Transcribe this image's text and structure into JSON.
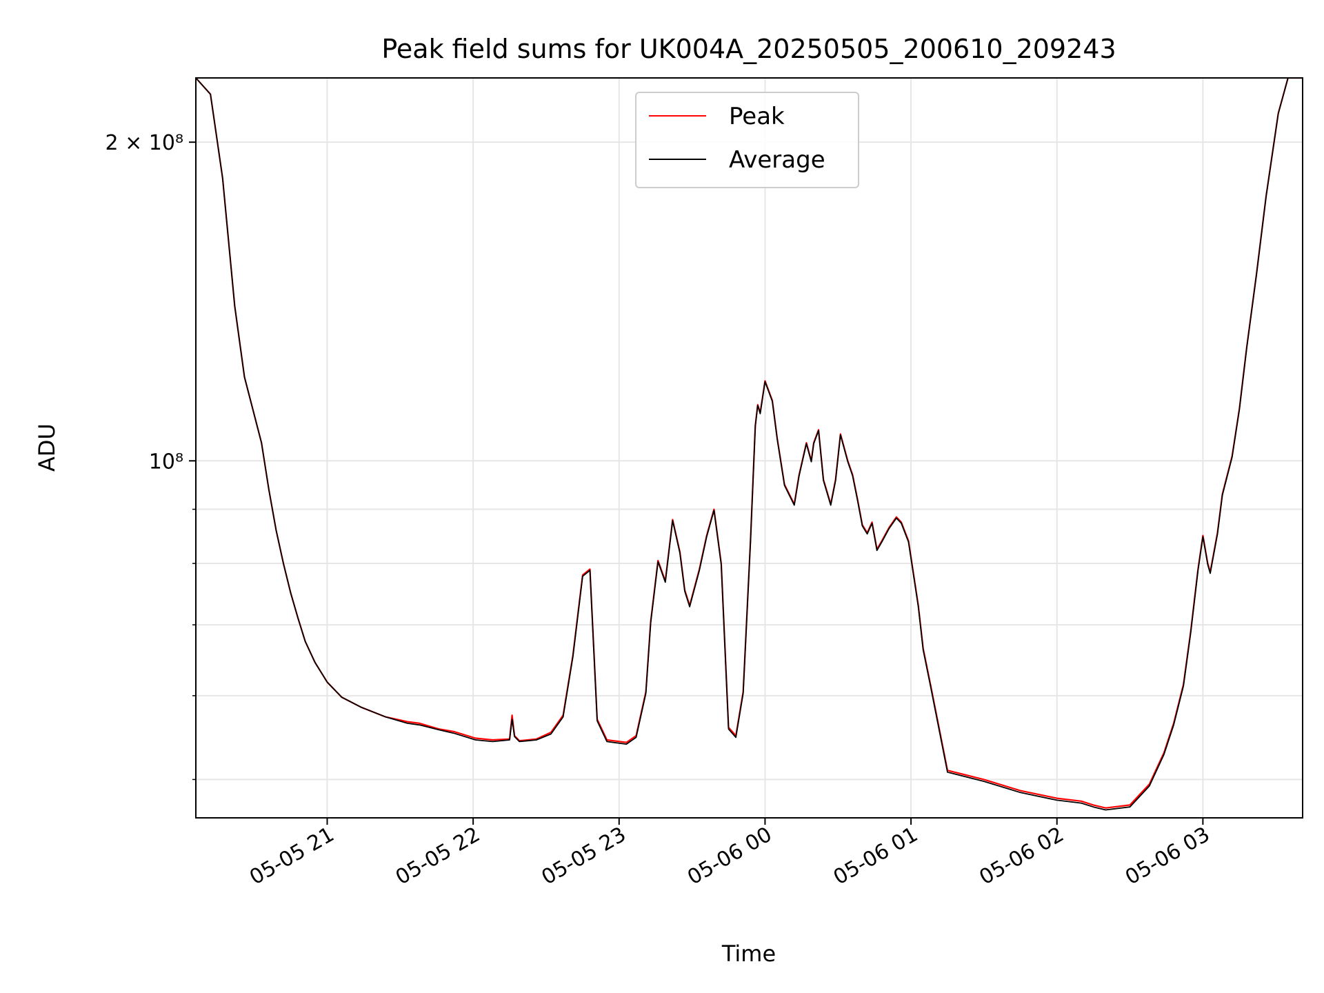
{
  "chart_data": {
    "type": "line",
    "title": "Peak field sums for UK004A_20250505_200610_209243",
    "xlabel": "Time",
    "ylabel": "ADU",
    "yscale": "log",
    "xlim": [
      "05-05 20:06",
      "05-06 03:41"
    ],
    "ylim": [
      46000000,
      230000000
    ],
    "grid": true,
    "legend_position": "top-center",
    "x_ticks": [
      {
        "time": "05-05 21:00",
        "label": "05-05 21"
      },
      {
        "time": "05-05 22:00",
        "label": "05-05 22"
      },
      {
        "time": "05-05 23:00",
        "label": "05-05 23"
      },
      {
        "time": "05-06 00:00",
        "label": "05-06 00"
      },
      {
        "time": "05-06 01:00",
        "label": "05-06 01"
      },
      {
        "time": "05-06 02:00",
        "label": "05-06 02"
      },
      {
        "time": "05-06 03:00",
        "label": "05-06 03"
      }
    ],
    "y_ticks": [
      {
        "value": 200000000,
        "label": "2 × 10⁸"
      },
      {
        "value": 100000000,
        "label": "10⁸"
      }
    ],
    "series": [
      {
        "name": "Peak",
        "color": "#ff0000",
        "x": [
          "05-05 20:06",
          "05-05 20:12",
          "05-05 20:17",
          "05-05 20:22",
          "05-05 20:26",
          "05-05 20:33",
          "05-05 20:36",
          "05-05 20:39",
          "05-05 20:42",
          "05-05 20:45",
          "05-05 20:48",
          "05-05 20:51",
          "05-05 20:55",
          "05-05 21:00",
          "05-05 21:06",
          "05-05 21:14",
          "05-05 21:24",
          "05-05 21:33",
          "05-05 21:38",
          "05-05 21:46",
          "05-05 21:52",
          "05-05 22:01",
          "05-05 22:08",
          "05-05 22:15",
          "05-05 22:16",
          "05-05 22:17",
          "05-05 22:19",
          "05-05 22:26",
          "05-05 22:32",
          "05-05 22:37",
          "05-05 22:41",
          "05-05 22:45",
          "05-05 22:48",
          "05-05 22:51",
          "05-05 22:55",
          "05-05 23:03",
          "05-05 23:07",
          "05-05 23:11",
          "05-05 23:13",
          "05-05 23:16",
          "05-05 23:19",
          "05-05 23:22",
          "05-05 23:25",
          "05-05 23:27",
          "05-05 23:29",
          "05-05 23:33",
          "05-05 23:36",
          "05-05 23:39",
          "05-05 23:42",
          "05-05 23:45",
          "05-05 23:48",
          "05-05 23:51",
          "05-05 23:54",
          "05-05 23:56",
          "05-05 23:57",
          "05-05 23:58",
          "05-06 00:00",
          "05-06 00:03",
          "05-06 00:05",
          "05-06 00:08",
          "05-06 00:12",
          "05-06 00:14",
          "05-06 00:17",
          "05-06 00:19",
          "05-06 00:20",
          "05-06 00:22",
          "05-06 00:24",
          "05-06 00:27",
          "05-06 00:29",
          "05-06 00:31",
          "05-06 00:34",
          "05-06 00:36",
          "05-06 00:38",
          "05-06 00:40",
          "05-06 00:42",
          "05-06 00:44",
          "05-06 00:46",
          "05-06 00:48",
          "05-06 00:51",
          "05-06 00:54",
          "05-06 00:56",
          "05-06 00:59",
          "05-06 01:03",
          "05-06 01:05",
          "05-06 01:08",
          "05-06 01:15",
          "05-06 01:30",
          "05-06 01:45",
          "05-06 02:00",
          "05-06 02:10",
          "05-06 02:15",
          "05-06 02:20",
          "05-06 02:30",
          "05-06 02:38",
          "05-06 02:44",
          "05-06 02:48",
          "05-06 02:52",
          "05-06 02:55",
          "05-06 02:58",
          "05-06 03:00",
          "05-06 03:02",
          "05-06 03:03",
          "05-06 03:06",
          "05-06 03:08",
          "05-06 03:12",
          "05-06 03:15",
          "05-06 03:18",
          "05-06 03:22",
          "05-06 03:26",
          "05-06 03:31",
          "05-06 03:35",
          "05-06 03:41"
        ],
        "y": [
          230000000,
          222000000,
          185000000,
          140000000,
          120000000,
          104000000,
          94000000,
          86000000,
          80000000,
          75000000,
          71000000,
          67500000,
          64500000,
          61800000,
          59800000,
          58500000,
          57300000,
          56700000,
          56500000,
          55800000,
          55500000,
          54700000,
          54500000,
          54600000,
          57500000,
          55000000,
          54400000,
          54600000,
          55400000,
          57500000,
          65500000,
          78000000,
          79000000,
          57000000,
          54500000,
          54200000,
          55000000,
          60500000,
          70500000,
          80500000,
          77000000,
          88000000,
          82000000,
          75500000,
          73000000,
          79000000,
          85000000,
          90000000,
          80000000,
          56000000,
          55000000,
          60500000,
          84000000,
          108000000,
          113000000,
          111000000,
          119000000,
          114000000,
          105000000,
          95000000,
          91000000,
          97000000,
          104000000,
          100000000,
          104000000,
          107000000,
          96000000,
          91000000,
          96000000,
          106000000,
          100000000,
          97000000,
          92000000,
          87000000,
          85500000,
          87500000,
          82500000,
          84000000,
          86500000,
          88500000,
          87500000,
          84000000,
          73000000,
          66500000,
          61500000,
          51000000,
          50000000,
          48800000,
          48000000,
          47700000,
          47300000,
          47000000,
          47300000,
          49500000,
          53000000,
          56500000,
          61500000,
          69000000,
          79000000,
          85000000,
          80000000,
          78500000,
          85500000,
          93000000,
          101000000,
          112000000,
          128000000,
          150000000,
          178000000,
          213000000,
          230000000,
          230000000
        ]
      },
      {
        "name": "Average",
        "color": "#000000",
        "x": [
          "05-05 20:06",
          "05-05 20:12",
          "05-05 20:17",
          "05-05 20:22",
          "05-05 20:26",
          "05-05 20:33",
          "05-05 20:36",
          "05-05 20:39",
          "05-05 20:42",
          "05-05 20:45",
          "05-05 20:48",
          "05-05 20:51",
          "05-05 20:55",
          "05-05 21:00",
          "05-05 21:06",
          "05-05 21:14",
          "05-05 21:24",
          "05-05 21:33",
          "05-05 21:38",
          "05-05 21:46",
          "05-05 21:52",
          "05-05 22:01",
          "05-05 22:08",
          "05-05 22:15",
          "05-05 22:16",
          "05-05 22:17",
          "05-05 22:19",
          "05-05 22:26",
          "05-05 22:32",
          "05-05 22:37",
          "05-05 22:41",
          "05-05 22:45",
          "05-05 22:48",
          "05-05 22:51",
          "05-05 22:55",
          "05-05 23:03",
          "05-05 23:07",
          "05-05 23:11",
          "05-05 23:13",
          "05-05 23:16",
          "05-05 23:19",
          "05-05 23:22",
          "05-05 23:25",
          "05-05 23:27",
          "05-05 23:29",
          "05-05 23:33",
          "05-05 23:36",
          "05-05 23:39",
          "05-05 23:42",
          "05-05 23:45",
          "05-05 23:48",
          "05-05 23:51",
          "05-05 23:54",
          "05-05 23:56",
          "05-05 23:57",
          "05-05 23:58",
          "05-06 00:00",
          "05-06 00:03",
          "05-06 00:05",
          "05-06 00:08",
          "05-06 00:12",
          "05-06 00:14",
          "05-06 00:17",
          "05-06 00:19",
          "05-06 00:20",
          "05-06 00:22",
          "05-06 00:24",
          "05-06 00:27",
          "05-06 00:29",
          "05-06 00:31",
          "05-06 00:34",
          "05-06 00:36",
          "05-06 00:38",
          "05-06 00:40",
          "05-06 00:42",
          "05-06 00:44",
          "05-06 00:46",
          "05-06 00:48",
          "05-06 00:51",
          "05-06 00:54",
          "05-06 00:56",
          "05-06 00:59",
          "05-06 01:03",
          "05-06 01:05",
          "05-06 01:08",
          "05-06 01:15",
          "05-06 01:30",
          "05-06 01:45",
          "05-06 02:00",
          "05-06 02:10",
          "05-06 02:15",
          "05-06 02:20",
          "05-06 02:30",
          "05-06 02:38",
          "05-06 02:44",
          "05-06 02:48",
          "05-06 02:52",
          "05-06 02:55",
          "05-06 02:58",
          "05-06 03:00",
          "05-06 03:02",
          "05-06 03:03",
          "05-06 03:06",
          "05-06 03:08",
          "05-06 03:12",
          "05-06 03:15",
          "05-06 03:18",
          "05-06 03:22",
          "05-06 03:26",
          "05-06 03:31",
          "05-06 03:35",
          "05-06 03:41"
        ],
        "y": [
          230000000,
          222000000,
          185000000,
          140000000,
          120000000,
          104000000,
          94000000,
          86000000,
          80000000,
          75000000,
          71000000,
          67500000,
          64500000,
          61800000,
          59800000,
          58500000,
          57300000,
          56500000,
          56300000,
          55700000,
          55300000,
          54500000,
          54300000,
          54500000,
          57000000,
          54900000,
          54300000,
          54500000,
          55200000,
          57300000,
          65300000,
          77800000,
          78800000,
          56800000,
          54300000,
          54000000,
          54800000,
          60300000,
          70300000,
          80300000,
          76800000,
          87800000,
          81800000,
          75300000,
          72800000,
          78800000,
          84800000,
          89800000,
          79800000,
          55800000,
          54800000,
          60300000,
          83800000,
          107800000,
          112800000,
          110800000,
          118800000,
          113800000,
          104800000,
          94800000,
          90800000,
          96800000,
          103800000,
          99800000,
          103800000,
          106800000,
          95800000,
          90800000,
          95800000,
          105800000,
          99800000,
          96800000,
          91800000,
          86800000,
          85300000,
          87300000,
          82300000,
          83800000,
          86300000,
          88300000,
          87300000,
          83800000,
          72800000,
          66300000,
          61300000,
          50800000,
          49800000,
          48600000,
          47800000,
          47500000,
          47100000,
          46800000,
          47100000,
          49300000,
          52800000,
          56300000,
          61300000,
          68800000,
          78800000,
          84800000,
          79800000,
          78300000,
          85300000,
          92800000,
          100800000,
          111800000,
          127800000,
          149800000,
          177800000,
          212800000,
          230000000,
          230000000
        ]
      }
    ]
  }
}
